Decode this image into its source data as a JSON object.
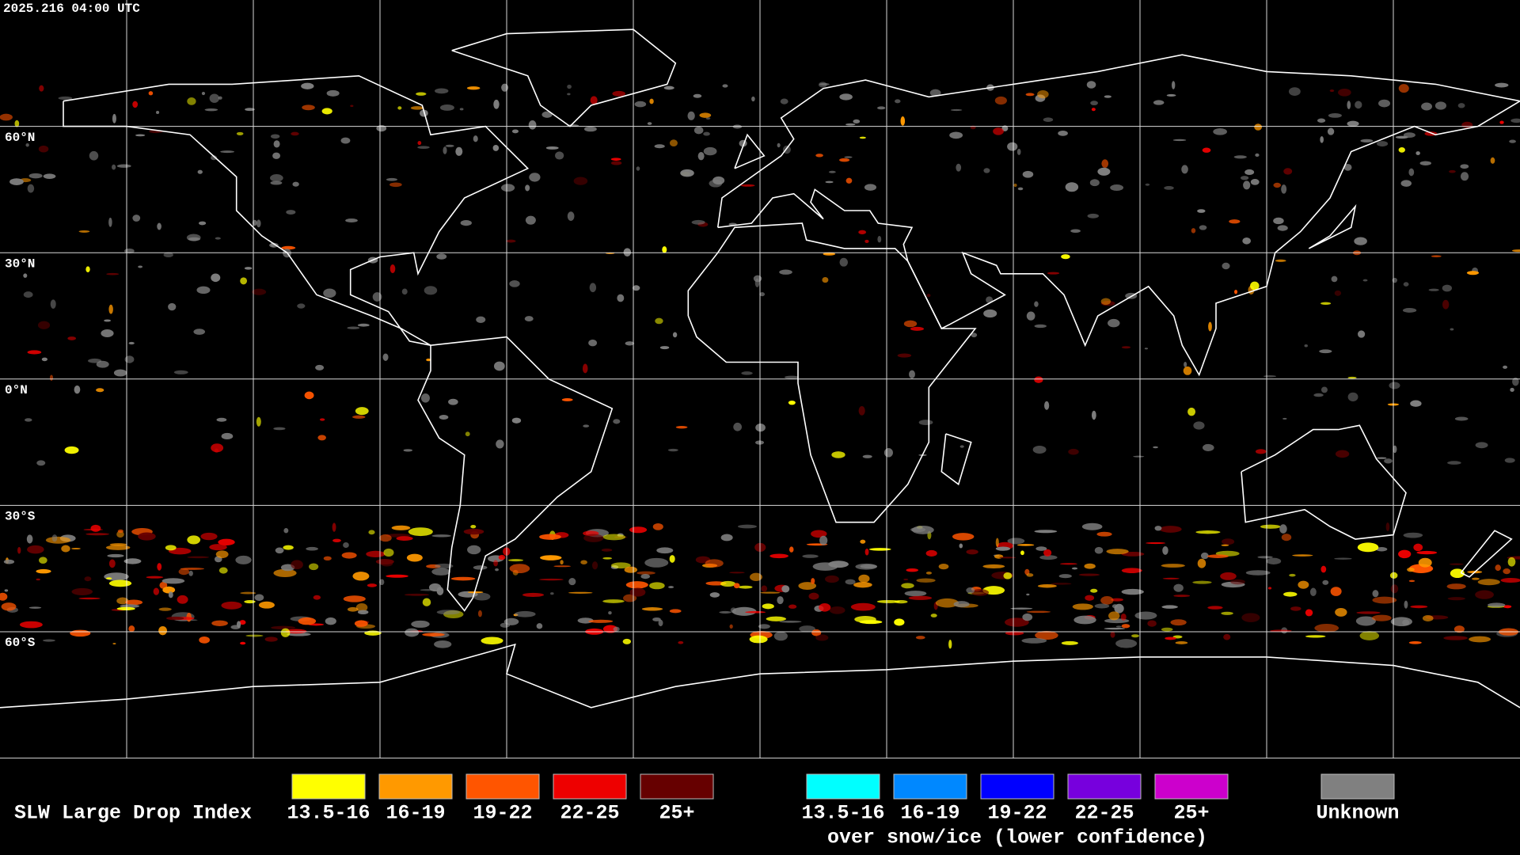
{
  "timestamp": "2025.216 04:00 UTC",
  "latitude_labels": [
    "60°N",
    "30°N",
    "0°N",
    "30°S",
    "60°S"
  ],
  "legend": {
    "title": "SLW Large Drop Index",
    "groups": [
      {
        "items": [
          {
            "label": "13.5-16",
            "color": "#ffff00"
          },
          {
            "label": "16-19",
            "color": "#ff9900"
          },
          {
            "label": "19-22",
            "color": "#ff5500"
          },
          {
            "label": "22-25",
            "color": "#ee0000"
          },
          {
            "label": "25+",
            "color": "#660000"
          }
        ]
      },
      {
        "items": [
          {
            "label": "13.5-16",
            "color": "#00ffff"
          },
          {
            "label": "16-19",
            "color": "#0088ff"
          },
          {
            "label": "19-22",
            "color": "#0000ff"
          },
          {
            "label": "22-25",
            "color": "#7700dd"
          },
          {
            "label": "25+",
            "color": "#cc00cc"
          }
        ],
        "note": "over snow/ice (lower confidence)"
      }
    ],
    "unknown": {
      "label": "Unknown",
      "color": "#808080"
    }
  }
}
